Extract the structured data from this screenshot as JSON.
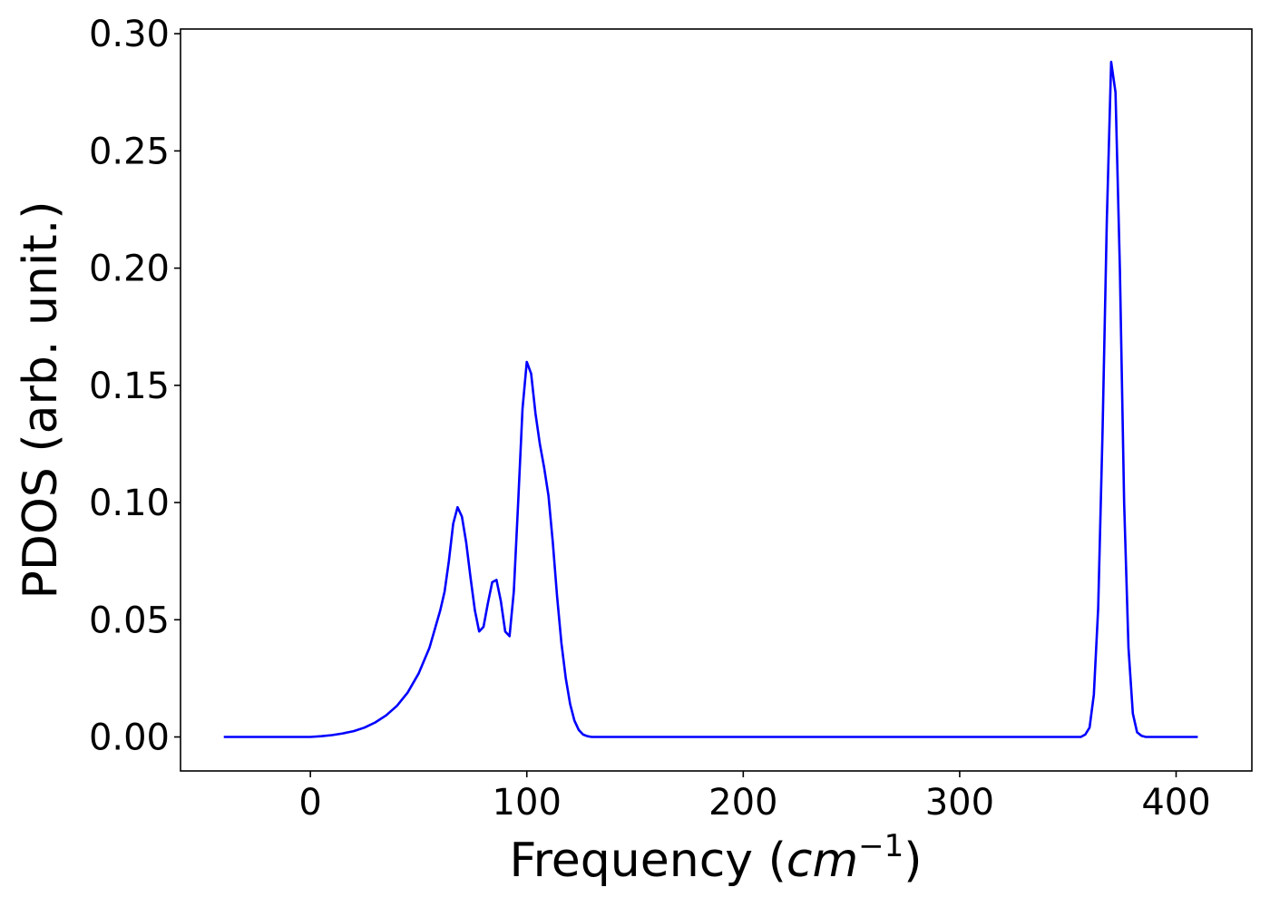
{
  "chart_data": {
    "type": "line",
    "title": "",
    "xlabel": {
      "prefix": "Frequency (",
      "var": "cm",
      "sup": "−1",
      "suffix": ")"
    },
    "ylabel": "PDOS (arb. unit.)",
    "xlim": [
      -60,
      435
    ],
    "ylim": [
      -0.0145,
      0.302
    ],
    "xticks": [
      0,
      100,
      200,
      300,
      400
    ],
    "xtick_labels": [
      "0",
      "100",
      "200",
      "300",
      "400"
    ],
    "yticks": [
      0.0,
      0.05,
      0.1,
      0.15,
      0.2,
      0.25,
      0.3
    ],
    "ytick_labels": [
      "0.00",
      "0.05",
      "0.10",
      "0.15",
      "0.20",
      "0.25",
      "0.30"
    ],
    "grid": false,
    "series": [
      {
        "color": "#0000ff",
        "x": [
          -40,
          -20,
          0,
          5,
          10,
          15,
          20,
          25,
          30,
          35,
          40,
          45,
          50,
          55,
          60,
          62,
          64,
          66,
          68,
          70,
          72,
          74,
          76,
          78,
          80,
          82,
          84,
          86,
          88,
          90,
          92,
          94,
          96,
          98,
          100,
          102,
          104,
          106,
          108,
          110,
          112,
          114,
          116,
          118,
          120,
          122,
          124,
          126,
          128,
          130,
          132,
          134,
          136,
          138,
          140,
          150,
          200,
          250,
          300,
          350,
          354,
          356,
          358,
          360,
          362,
          364,
          366,
          368,
          370,
          372,
          374,
          376,
          378,
          380,
          382,
          384,
          386,
          388,
          390,
          400,
          410
        ],
        "y": [
          0.0,
          0.0,
          0.0,
          0.0003,
          0.0008,
          0.0015,
          0.0025,
          0.004,
          0.0062,
          0.0092,
          0.0133,
          0.019,
          0.027,
          0.038,
          0.054,
          0.062,
          0.075,
          0.091,
          0.098,
          0.094,
          0.083,
          0.068,
          0.054,
          0.045,
          0.047,
          0.057,
          0.066,
          0.067,
          0.058,
          0.045,
          0.043,
          0.062,
          0.1,
          0.14,
          0.16,
          0.155,
          0.138,
          0.125,
          0.115,
          0.103,
          0.083,
          0.06,
          0.04,
          0.025,
          0.014,
          0.007,
          0.003,
          0.001,
          0.0003,
          0.0,
          0.0,
          0.0,
          0.0,
          0.0,
          0.0,
          0.0,
          0.0,
          0.0,
          0.0,
          0.0,
          0.0,
          0.0,
          0.001,
          0.004,
          0.018,
          0.055,
          0.13,
          0.22,
          0.288,
          0.275,
          0.2,
          0.1,
          0.038,
          0.01,
          0.002,
          0.0005,
          0.0,
          0.0,
          0.0,
          0.0,
          0.0
        ]
      }
    ]
  }
}
